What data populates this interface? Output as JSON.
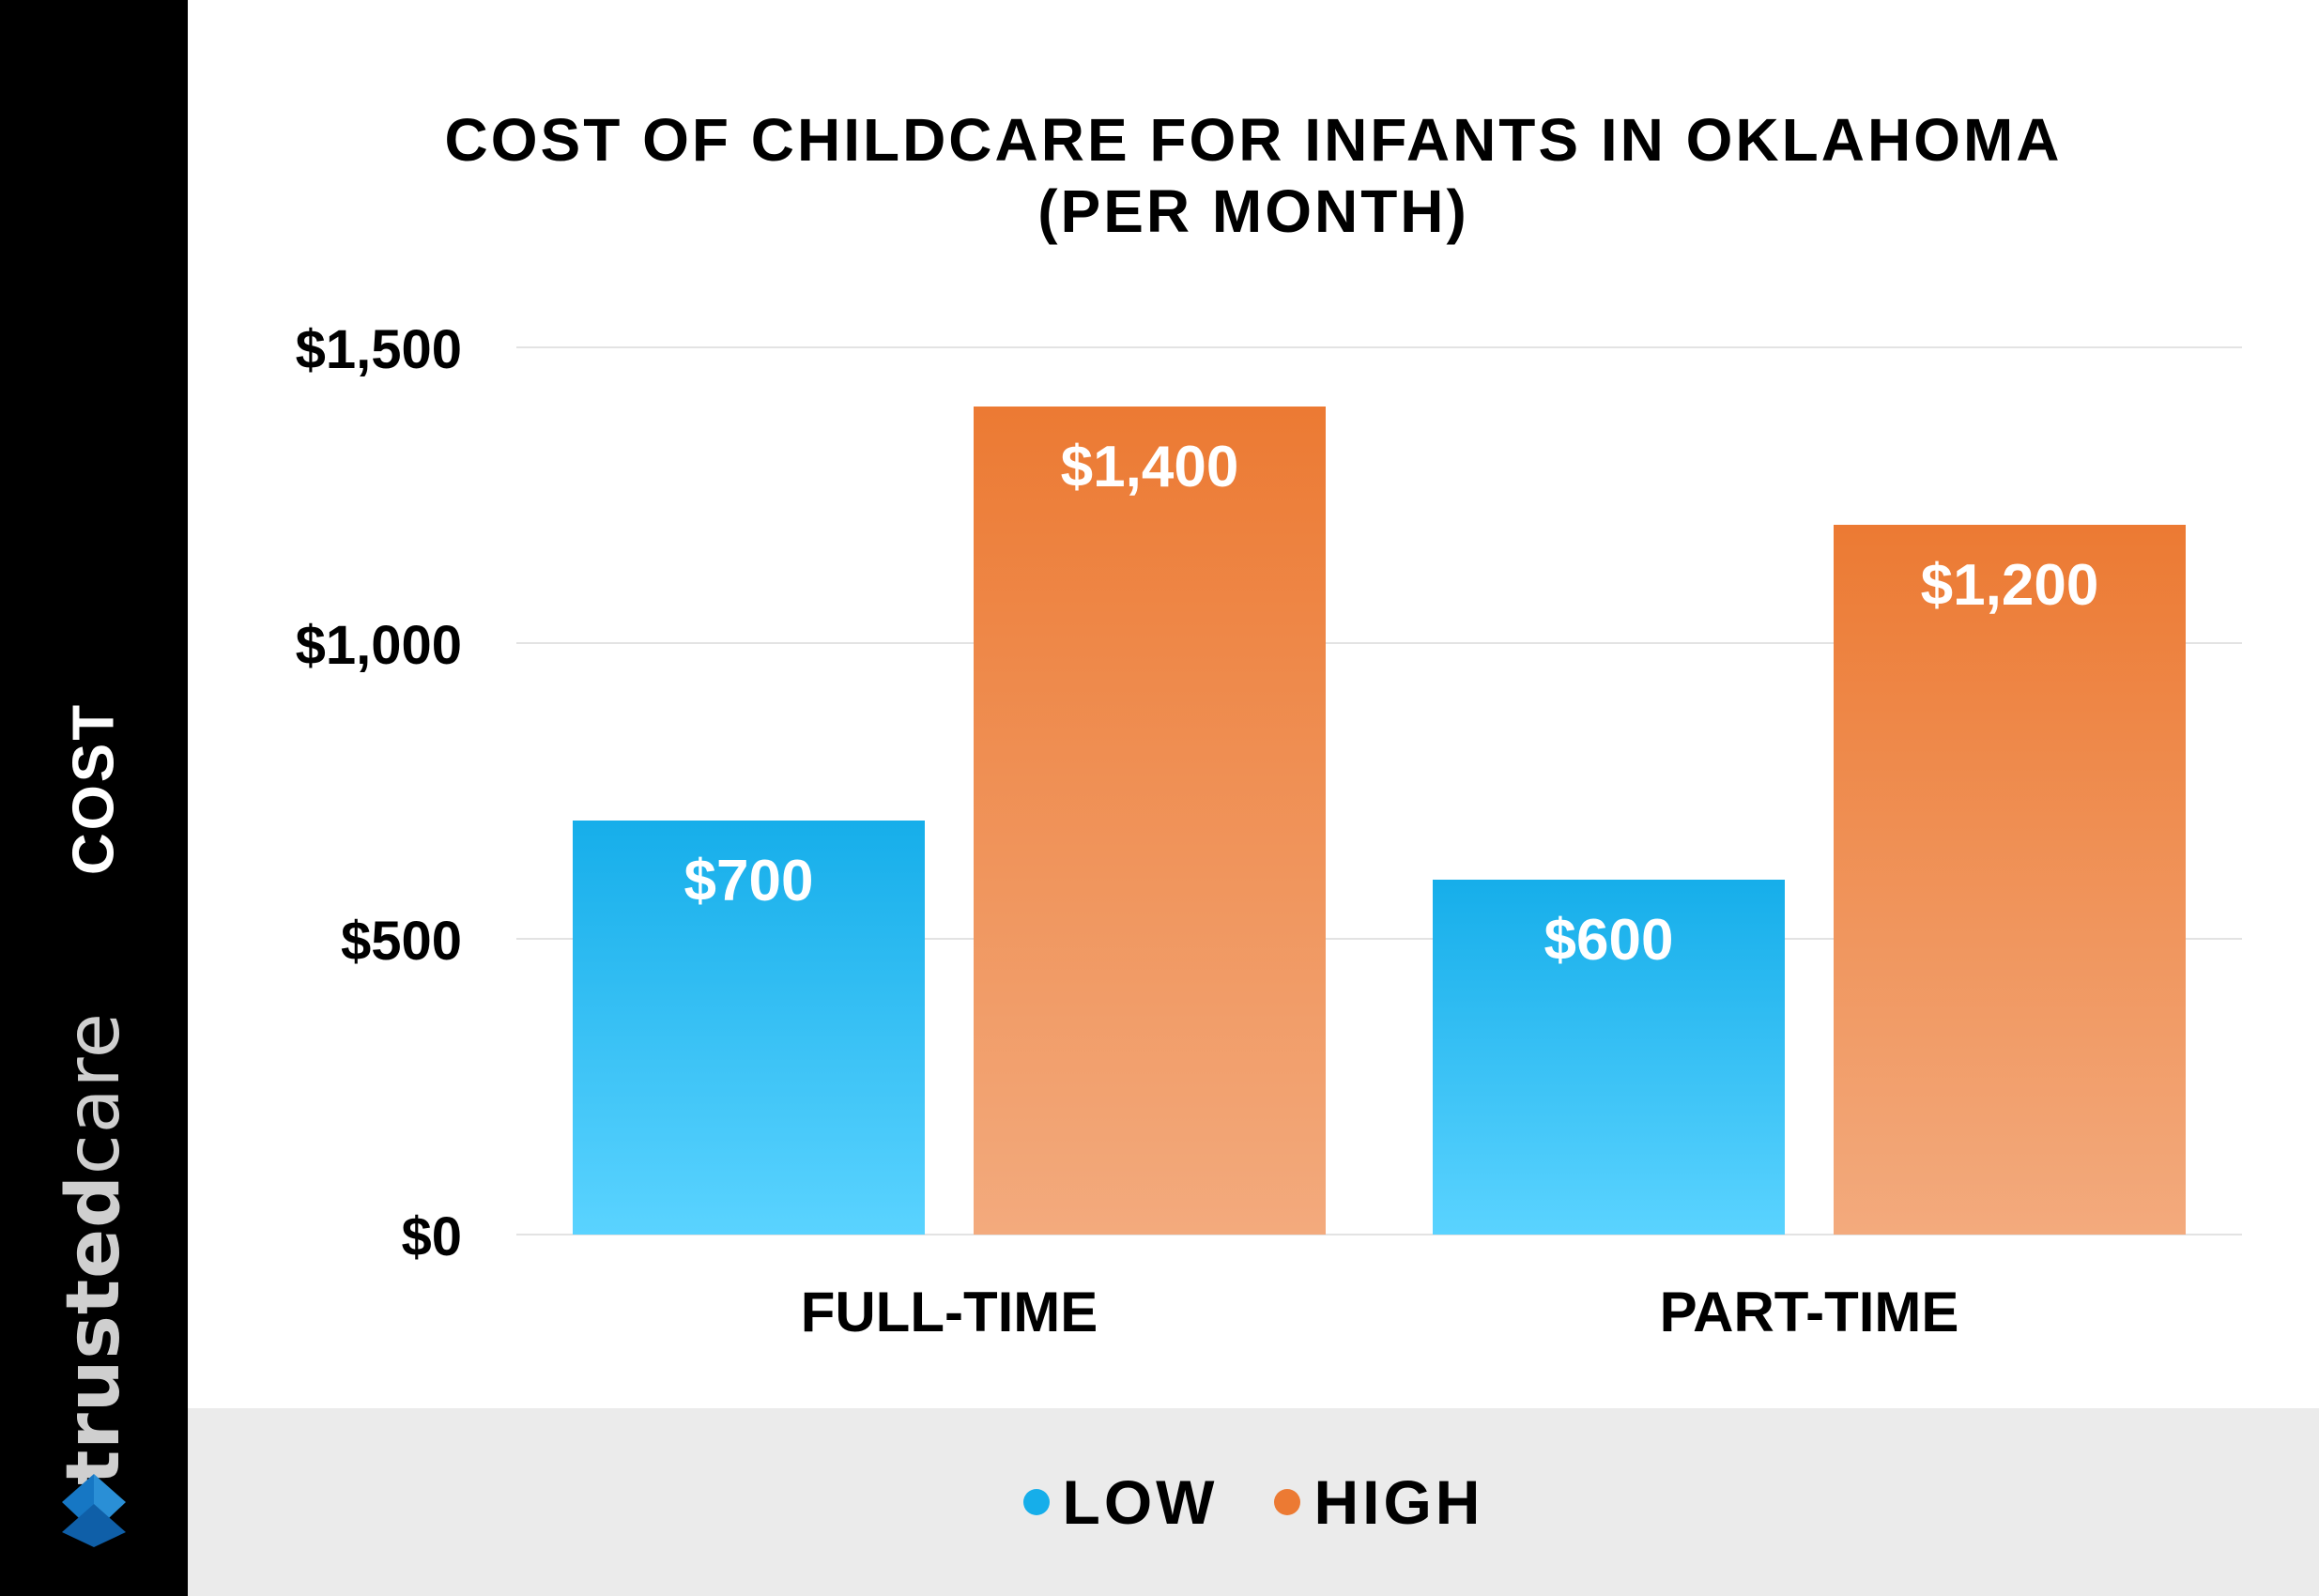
{
  "brand": {
    "part1": "trusted",
    "part2": "care"
  },
  "colors": {
    "sidebar": "#000000",
    "low_top": "#16aeea",
    "low_bottom": "#5ad3ff",
    "high_top": "#ec7a33",
    "high_bottom": "#f3aa7d",
    "legend_bg": "#ebebeb",
    "grid": "#e3e3e3"
  },
  "chart_data": {
    "type": "bar",
    "title_line1": "COST OF CHILDCARE FOR INFANTS IN OKLAHOMA",
    "title_line2": "(PER MONTH)",
    "ylabel": "COST",
    "xlabel": "",
    "categories": [
      "FULL-TIME",
      "PART-TIME"
    ],
    "series": [
      {
        "name": "LOW",
        "values": [
          700,
          600
        ],
        "labels": [
          "$700",
          "$600"
        ],
        "color": "#16aeea"
      },
      {
        "name": "HIGH",
        "values": [
          1400,
          1200
        ],
        "labels": [
          "$1,400",
          "$1,200"
        ],
        "color": "#ec7a33"
      }
    ],
    "ylim": [
      0,
      1500
    ],
    "yticks": [
      0,
      500,
      1000,
      1500
    ],
    "ytick_labels": [
      "$0",
      "$500",
      "$1,000",
      "$1,500"
    ],
    "grid": true,
    "legend_position": "bottom"
  }
}
